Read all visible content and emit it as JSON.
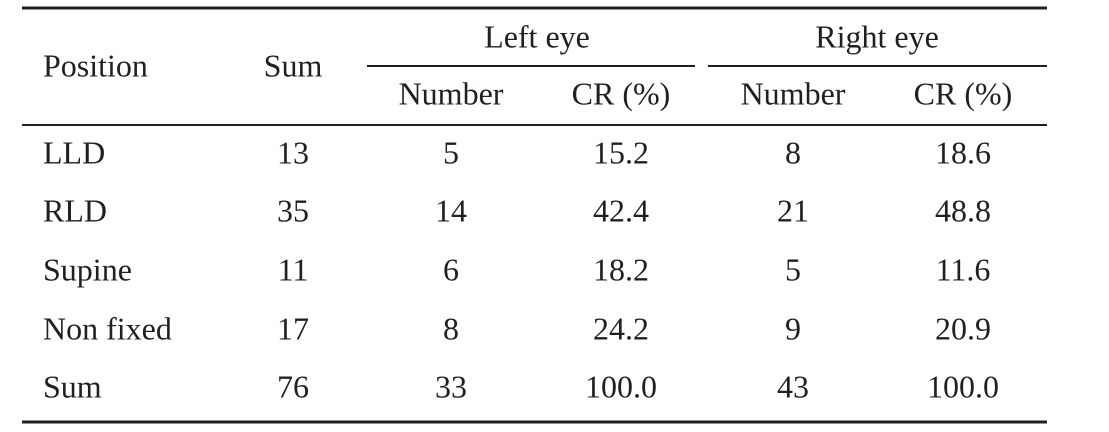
{
  "table": {
    "header": {
      "position": "Position",
      "sum": "Sum",
      "groups": [
        "Left eye",
        "Right eye"
      ],
      "subcolumns": [
        "Number",
        "CR (%)",
        "Number",
        "CR (%)"
      ]
    },
    "rows": [
      [
        "LLD",
        "13",
        "5",
        "15.2",
        "8",
        "18.6"
      ],
      [
        "RLD",
        "35",
        "14",
        "42.4",
        "21",
        "48.8"
      ],
      [
        "Supine",
        "11",
        "6",
        "18.2",
        "5",
        "11.6"
      ],
      [
        "Non fixed",
        "17",
        "8",
        "24.2",
        "9",
        "20.9"
      ],
      [
        "Sum",
        "76",
        "33",
        "100.0",
        "43",
        "100.0"
      ]
    ]
  }
}
